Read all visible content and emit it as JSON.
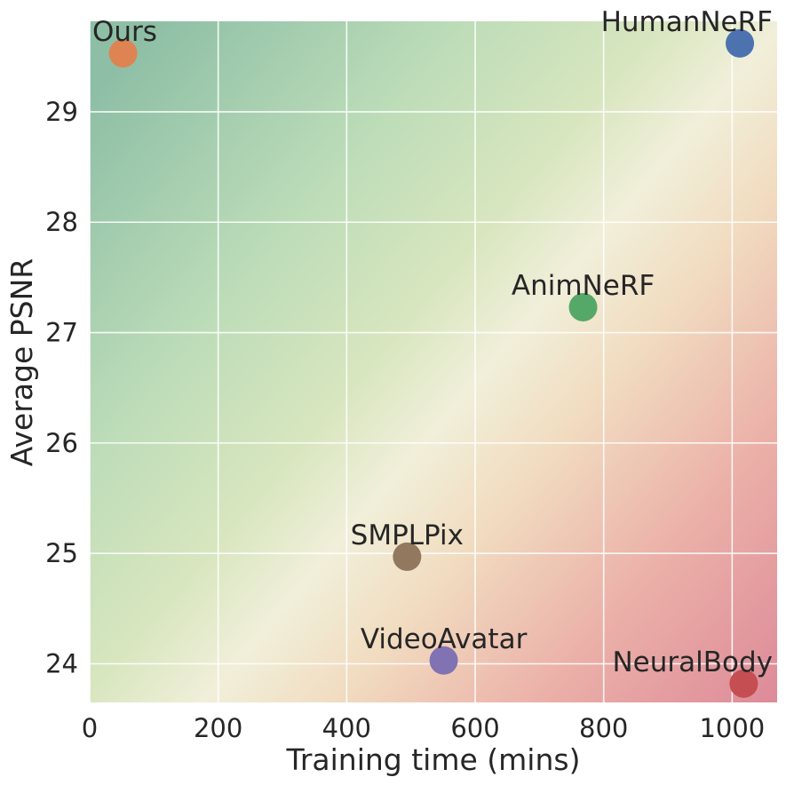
{
  "chart_data": {
    "type": "scatter",
    "title": "",
    "xlabel": "Training time (mins)",
    "ylabel": "Average PSNR",
    "xlim": [
      0,
      1070
    ],
    "ylim": [
      23.65,
      29.82
    ],
    "xticks": [
      0,
      200,
      400,
      600,
      800,
      1000
    ],
    "yticks": [
      24,
      25,
      26,
      27,
      28,
      29
    ],
    "grid": true,
    "background": "gradient green (top-left) to cream (middle) to red (bottom-right)",
    "points": [
      {
        "label": "Ours",
        "x": 52,
        "y": 29.53,
        "color": "#DD8452"
      },
      {
        "label": "HumanNeRF",
        "x": 1012,
        "y": 29.62,
        "color": "#4C72B0"
      },
      {
        "label": "AnimNeRF",
        "x": 768,
        "y": 27.23,
        "color": "#55A868"
      },
      {
        "label": "SMPLPix",
        "x": 494,
        "y": 24.97,
        "color": "#937860"
      },
      {
        "label": "VideoAvatar",
        "x": 551,
        "y": 24.03,
        "color": "#8172B3"
      },
      {
        "label": "NeuralBody",
        "x": 1018,
        "y": 23.82,
        "color": "#C44E52"
      }
    ]
  }
}
